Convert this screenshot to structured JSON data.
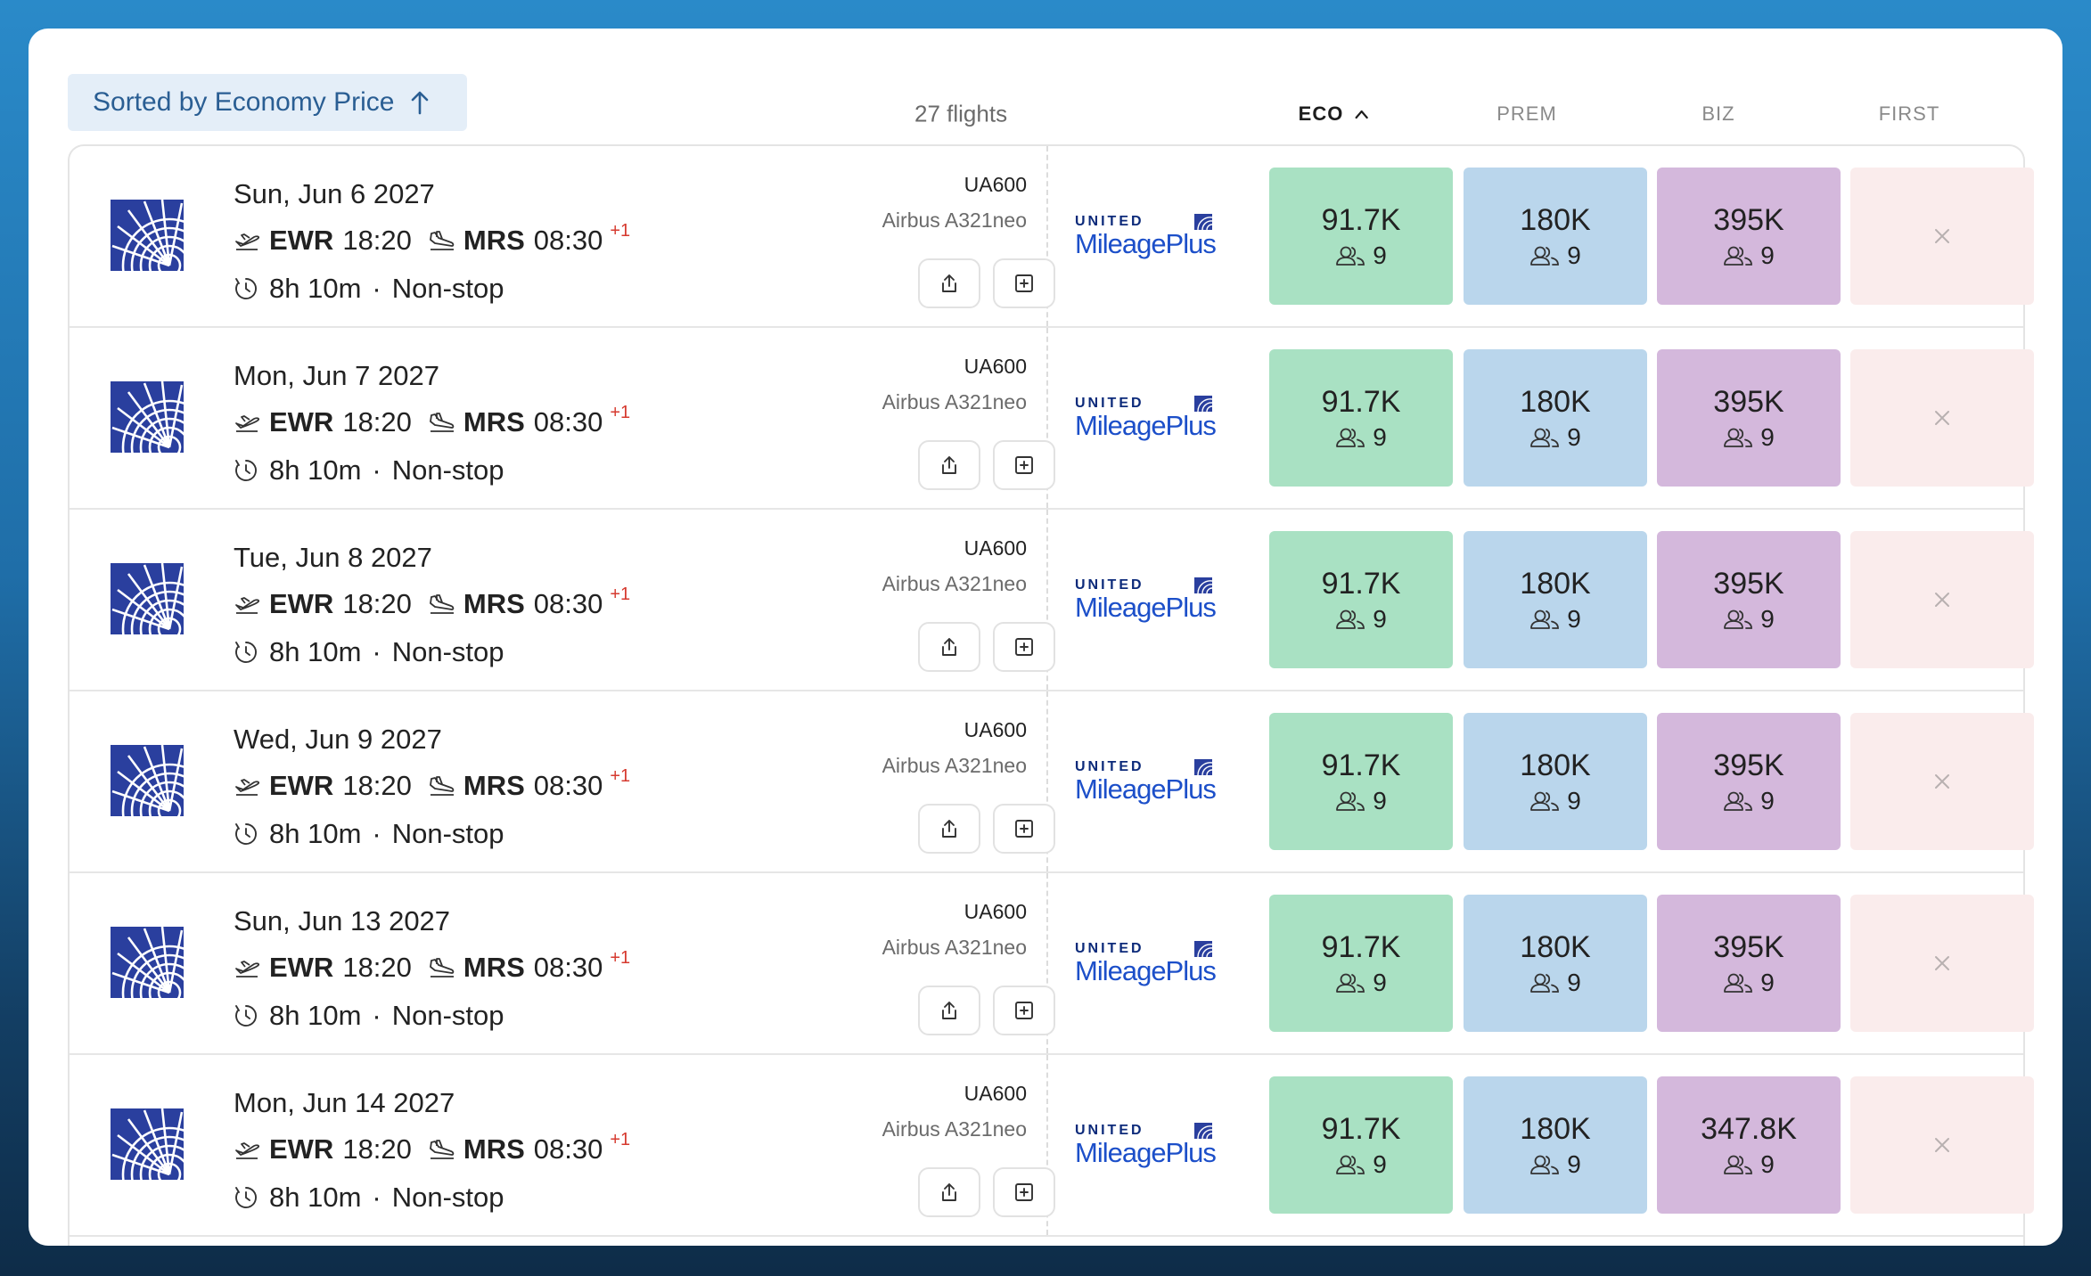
{
  "toolbar": {
    "sort_label": "Sorted by Economy Price",
    "flight_count": "27 flights"
  },
  "columns": [
    {
      "label": "ECO",
      "active": true
    },
    {
      "label": "PREM",
      "active": false
    },
    {
      "label": "BIZ",
      "active": false
    },
    {
      "label": "FIRST",
      "active": false
    }
  ],
  "icons": {
    "sort": "arrow-up-icon",
    "column_sort": "chevron-up-icon",
    "airline": "united-globe-logo",
    "departure": "takeoff-icon",
    "arrival": "landing-icon",
    "duration": "clock-icon",
    "share": "share-icon",
    "add": "plus-square-icon",
    "seats": "users-icon",
    "unavailable": "close-icon"
  },
  "colors": {
    "eco": "#a9e1c3",
    "prem": "#bad6ec",
    "biz": "#d4b8dc",
    "first": "#faecec",
    "next_day": "#d63a2f"
  },
  "flights": [
    {
      "date": "Sun, Jun 6 2027",
      "dep_code": "EWR",
      "dep_time": "18:20",
      "arr_code": "MRS",
      "arr_time": "08:30",
      "day_offset": "+1",
      "duration": "8h 10m",
      "stops": "Non-stop",
      "sep": "·",
      "flight_no": "UA600",
      "aircraft": "Airbus A321neo",
      "program_brand": "UNITED",
      "program_name": "MileagePlus",
      "eco": "91.7K",
      "eco_seats": "9",
      "prem": "180K",
      "prem_seats": "9",
      "biz": "395K",
      "biz_seats": "9"
    },
    {
      "date": "Mon, Jun 7 2027",
      "dep_code": "EWR",
      "dep_time": "18:20",
      "arr_code": "MRS",
      "arr_time": "08:30",
      "day_offset": "+1",
      "duration": "8h 10m",
      "stops": "Non-stop",
      "sep": "·",
      "flight_no": "UA600",
      "aircraft": "Airbus A321neo",
      "program_brand": "UNITED",
      "program_name": "MileagePlus",
      "eco": "91.7K",
      "eco_seats": "9",
      "prem": "180K",
      "prem_seats": "9",
      "biz": "395K",
      "biz_seats": "9"
    },
    {
      "date": "Tue, Jun 8 2027",
      "dep_code": "EWR",
      "dep_time": "18:20",
      "arr_code": "MRS",
      "arr_time": "08:30",
      "day_offset": "+1",
      "duration": "8h 10m",
      "stops": "Non-stop",
      "sep": "·",
      "flight_no": "UA600",
      "aircraft": "Airbus A321neo",
      "program_brand": "UNITED",
      "program_name": "MileagePlus",
      "eco": "91.7K",
      "eco_seats": "9",
      "prem": "180K",
      "prem_seats": "9",
      "biz": "395K",
      "biz_seats": "9"
    },
    {
      "date": "Wed, Jun 9 2027",
      "dep_code": "EWR",
      "dep_time": "18:20",
      "arr_code": "MRS",
      "arr_time": "08:30",
      "day_offset": "+1",
      "duration": "8h 10m",
      "stops": "Non-stop",
      "sep": "·",
      "flight_no": "UA600",
      "aircraft": "Airbus A321neo",
      "program_brand": "UNITED",
      "program_name": "MileagePlus",
      "eco": "91.7K",
      "eco_seats": "9",
      "prem": "180K",
      "prem_seats": "9",
      "biz": "395K",
      "biz_seats": "9"
    },
    {
      "date": "Sun, Jun 13 2027",
      "dep_code": "EWR",
      "dep_time": "18:20",
      "arr_code": "MRS",
      "arr_time": "08:30",
      "day_offset": "+1",
      "duration": "8h 10m",
      "stops": "Non-stop",
      "sep": "·",
      "flight_no": "UA600",
      "aircraft": "Airbus A321neo",
      "program_brand": "UNITED",
      "program_name": "MileagePlus",
      "eco": "91.7K",
      "eco_seats": "9",
      "prem": "180K",
      "prem_seats": "9",
      "biz": "395K",
      "biz_seats": "9"
    },
    {
      "date": "Mon, Jun 14 2027",
      "dep_code": "EWR",
      "dep_time": "18:20",
      "arr_code": "MRS",
      "arr_time": "08:30",
      "day_offset": "+1",
      "duration": "8h 10m",
      "stops": "Non-stop",
      "sep": "·",
      "flight_no": "UA600",
      "aircraft": "Airbus A321neo",
      "program_brand": "UNITED",
      "program_name": "MileagePlus",
      "eco": "91.7K",
      "eco_seats": "9",
      "prem": "180K",
      "prem_seats": "9",
      "biz": "347.8K",
      "biz_seats": "9"
    }
  ]
}
